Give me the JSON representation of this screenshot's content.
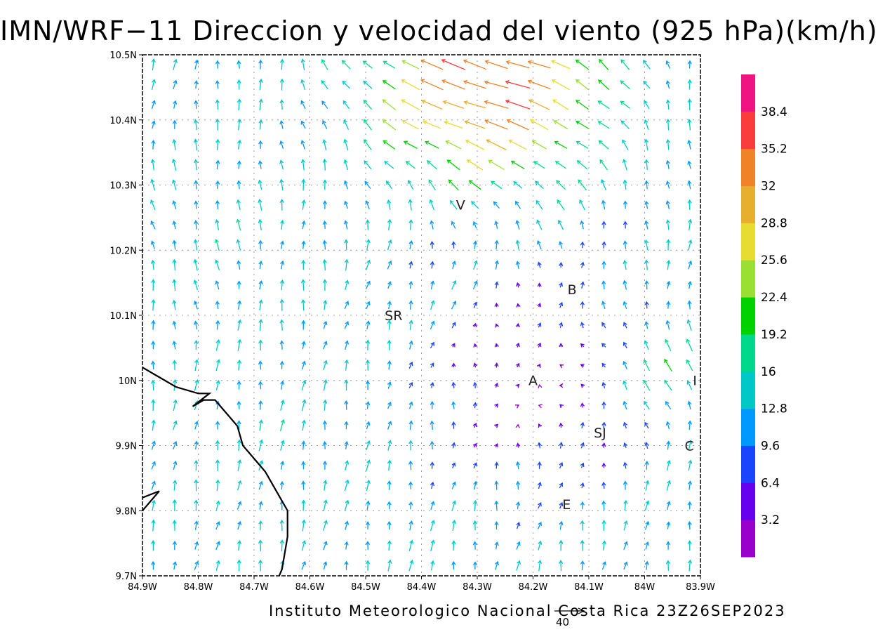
{
  "title": "IMN/WRF−11 Direccion y velocidad del viento (925 hPa)(km/h)",
  "credit": "Instituto Meteorologico Nacional Costa Rica 23Z26SEP2023",
  "reference_vector": {
    "label": "40",
    "speed": 40
  },
  "lon_ticks": [
    "84.9W",
    "84.8W",
    "84.7W",
    "84.6W",
    "84.5W",
    "84.4W",
    "84.3W",
    "84.2W",
    "84.1W",
    "84W",
    "83.9W"
  ],
  "lat_ticks": [
    "10.5N",
    "10.4N",
    "10.3N",
    "10.2N",
    "10.1N",
    "10N",
    "9.9N",
    "9.8N",
    "9.7N"
  ],
  "colorbar": {
    "labels": [
      "3.2",
      "6.4",
      "9.6",
      "12.8",
      "16",
      "19.2",
      "22.4",
      "25.6",
      "28.8",
      "32",
      "35.2",
      "38.4"
    ],
    "colors": [
      "#9900cc",
      "#6600ee",
      "#1a44ff",
      "#0099ff",
      "#00c8c8",
      "#00d98c",
      "#00d200",
      "#99e033",
      "#e6dc32",
      "#e6af2d",
      "#f08228",
      "#fa3c3c",
      "#f01482"
    ]
  },
  "cities": [
    {
      "name": "V",
      "lon": -84.33,
      "lat": 10.27
    },
    {
      "name": "B",
      "lon": -84.13,
      "lat": 10.14
    },
    {
      "name": "SR",
      "lon": -84.45,
      "lat": 10.1
    },
    {
      "name": "A",
      "lon": -84.2,
      "lat": 10.0
    },
    {
      "name": "I",
      "lon": -83.91,
      "lat": 10.0
    },
    {
      "name": "SJ",
      "lon": -84.08,
      "lat": 9.92
    },
    {
      "name": "C",
      "lon": -83.92,
      "lat": 9.9
    },
    {
      "name": "E",
      "lon": -84.14,
      "lat": 9.81
    }
  ],
  "coastline": [
    [
      -84.9,
      10.02
    ],
    [
      -84.88,
      10.01
    ],
    [
      -84.84,
      9.99
    ],
    [
      -84.8,
      9.98
    ],
    [
      -84.78,
      9.98
    ],
    [
      -84.81,
      9.96
    ],
    [
      -84.79,
      9.97
    ],
    [
      -84.77,
      9.97
    ],
    [
      -84.75,
      9.95
    ],
    [
      -84.73,
      9.93
    ],
    [
      -84.72,
      9.9
    ],
    [
      -84.7,
      9.88
    ],
    [
      -84.68,
      9.86
    ],
    [
      -84.66,
      9.83
    ],
    [
      -84.64,
      9.8
    ],
    [
      -84.64,
      9.76
    ],
    [
      -84.65,
      9.71
    ],
    [
      -84.66,
      9.69
    ]
  ],
  "peninsula_tip": [
    [
      -84.9,
      9.82
    ],
    [
      -84.87,
      9.83
    ],
    [
      -84.9,
      9.8
    ]
  ]
}
